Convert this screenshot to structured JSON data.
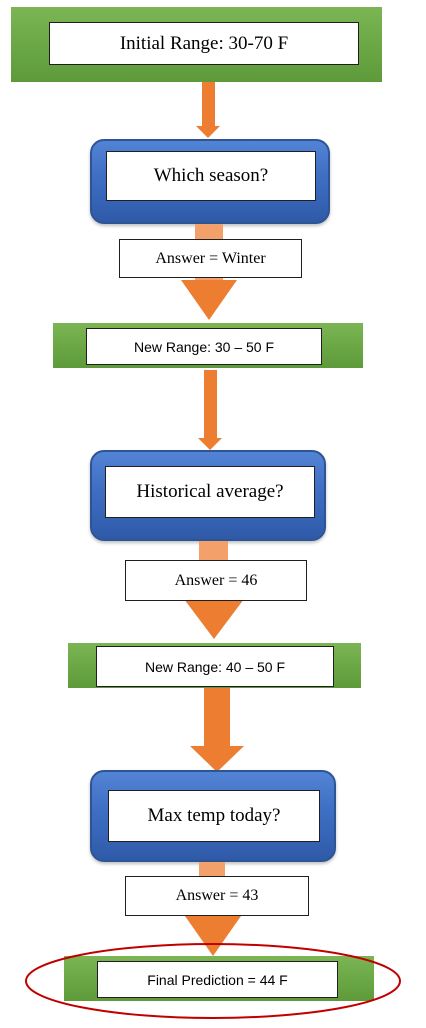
{
  "initial": {
    "label": "Initial Range: 30-70 F"
  },
  "steps": [
    {
      "question": "Which season?",
      "answer": "Answer = Winter",
      "range": "New Range: 30 – 50 F"
    },
    {
      "question": "Historical average?",
      "answer": "Answer = 46",
      "range": "New Range: 40 – 50 F"
    },
    {
      "question": "Max temp today?",
      "answer": "Answer = 43"
    }
  ],
  "final": {
    "label": "Final Prediction = 44 F"
  },
  "colors": {
    "green": "#70ad47",
    "blue": "#4472c4",
    "orange": "#ed7d31",
    "highlight_oval": "#c00000"
  }
}
